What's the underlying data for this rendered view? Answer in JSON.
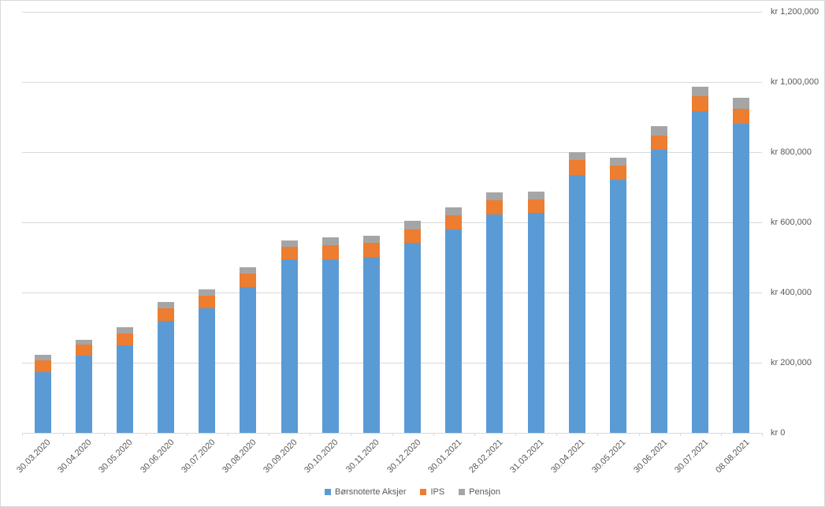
{
  "chart_data": {
    "type": "bar",
    "stacked": true,
    "title": "",
    "categories": [
      "30.03.2020",
      "30.04.2020",
      "30.05.2020",
      "30.06.2020",
      "30.07.2020",
      "30.08.2020",
      "30.09.2020",
      "30.10.2020",
      "30.11.2020",
      "30.12.2020",
      "30.01.2021",
      "28.02.2021",
      "31.03.2021",
      "30.04.2021",
      "30.05.2021",
      "30.06.2021",
      "30.07.2021",
      "08.08.2021"
    ],
    "series": [
      {
        "name": "Børsnoterte Aksjer",
        "color": "#5B9BD5",
        "values": [
          173000,
          220000,
          249000,
          318000,
          355000,
          415000,
          495000,
          495000,
          501000,
          541000,
          580000,
          623000,
          627000,
          735000,
          722000,
          807000,
          916000,
          880000
        ]
      },
      {
        "name": "IPS",
        "color": "#ED7D31",
        "values": [
          34500,
          31500,
          35000,
          37500,
          35500,
          39000,
          34500,
          40000,
          40000,
          39500,
          40000,
          39000,
          37500,
          43500,
          40000,
          41000,
          43500,
          43000
        ]
      },
      {
        "name": "Pensjon",
        "color": "#A5A5A5",
        "values": [
          15000,
          14500,
          16500,
          18000,
          19500,
          19000,
          19500,
          22000,
          20500,
          23500,
          22500,
          22500,
          24000,
          22500,
          23000,
          27000,
          27000,
          33000
        ]
      }
    ],
    "y_axis": {
      "side": "right",
      "min": 0,
      "max": 1200000,
      "tick_values": [
        0,
        200000,
        400000,
        600000,
        800000,
        1000000,
        1200000
      ],
      "tick_labels": [
        "kr 0",
        "kr 200,000",
        "kr 400,000",
        "kr 600,000",
        "kr 800,000",
        "kr 1,000,000",
        "kr 1,200,000"
      ]
    },
    "grid": true,
    "legend_position": "bottom",
    "colors": {
      "gridline": "#D9D9D9",
      "axis_line": "#D9D9D9",
      "axis_text": "#595959",
      "background": "#FFFFFF",
      "frame_border": "#D9D9D9"
    }
  }
}
